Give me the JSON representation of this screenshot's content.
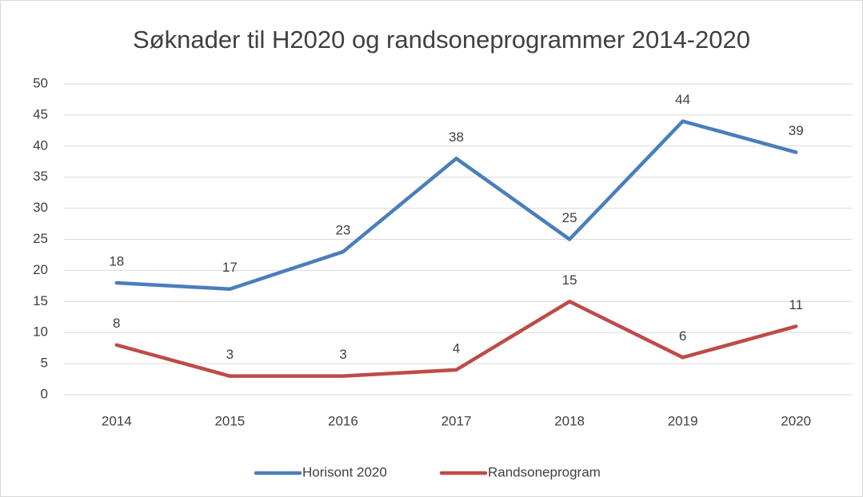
{
  "chart_data": {
    "type": "line",
    "title": "Søknader til H2020 og randsoneprogrammer 2014-2020",
    "categories": [
      "2014",
      "2015",
      "2016",
      "2017",
      "2018",
      "2019",
      "2020"
    ],
    "series": [
      {
        "name": "Horisont 2020",
        "color": "#4a7ebb",
        "values": [
          18,
          17,
          23,
          38,
          25,
          44,
          39
        ]
      },
      {
        "name": "Randsoneprogram",
        "color": "#be4b48",
        "values": [
          8,
          3,
          3,
          4,
          15,
          6,
          11
        ]
      }
    ],
    "ylim": [
      0,
      50
    ],
    "yticks": [
      0,
      5,
      10,
      15,
      20,
      25,
      30,
      35,
      40,
      45,
      50
    ],
    "grid": true,
    "legend": "bottom"
  }
}
